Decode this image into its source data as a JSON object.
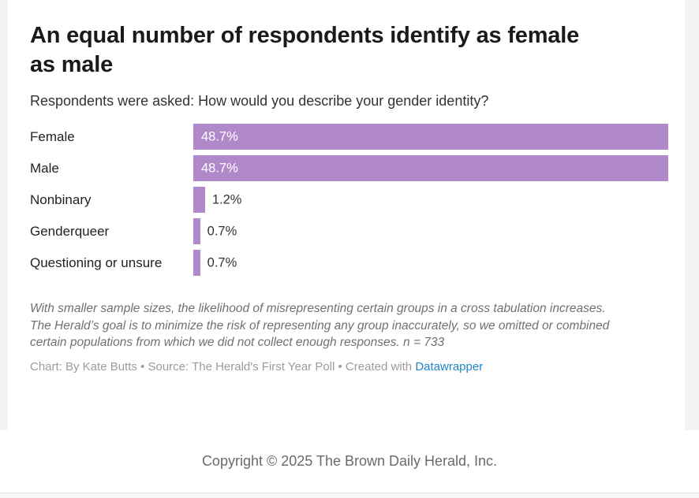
{
  "chart": {
    "title": "An equal number of respondents identify as female as male",
    "subtitle": "Respondents were asked: How would you describe your gender identity?",
    "bar_color": "#b188c9",
    "notes": "With smaller sample sizes, the likelihood of misrepresenting certain groups in a cross tabulation increases. The Herald’s goal is to minimize the risk of representing any group inaccurately, so we omitted or combined certain populations from which we did not collect enough responses. n = 733",
    "credit_prefix": "Chart: By Kate Butts • Source: The Herald's First Year Poll • Created with ",
    "credit_link_label": "Datawrapper",
    "credit_link_color": "#1d86c8"
  },
  "chart_data": {
    "type": "bar",
    "orientation": "horizontal",
    "categories": [
      "Female",
      "Male",
      "Nonbinary",
      "Genderqueer",
      "Questioning or unsure"
    ],
    "values": [
      48.7,
      48.7,
      1.2,
      0.7,
      0.7
    ],
    "value_labels": [
      "48.7%",
      "48.7%",
      "1.2%",
      "0.7%",
      "0.7%"
    ],
    "xlim": [
      0,
      48.7
    ],
    "grid": "off",
    "legend": "none",
    "bar_color": "#b188c9"
  },
  "footer": {
    "copyright": "Copyright © 2025 The Brown Daily Herald, Inc."
  }
}
